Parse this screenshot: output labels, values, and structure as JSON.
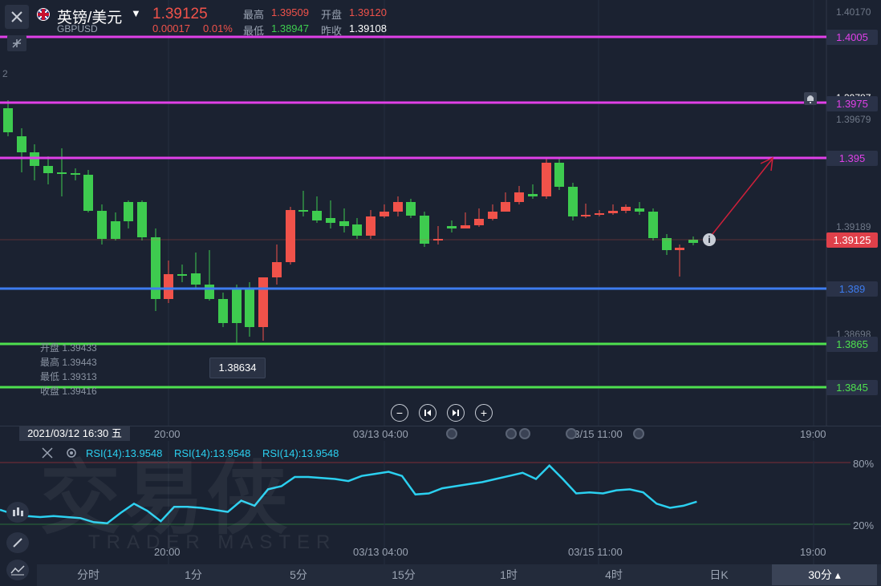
{
  "header": {
    "symbol_name": "英镑/美元",
    "symbol_code": "GBPUSD",
    "price": "1.39125",
    "change": "0.00017",
    "change_pct": "0.01%",
    "high_label": "最高",
    "high_value": "1.39509",
    "open_label": "开盘",
    "open_value": "1.39120",
    "low_label": "最低",
    "low_value": "1.38947",
    "prev_close_label": "昨收",
    "prev_close_value": "1.39108"
  },
  "price_axis": {
    "ticks": [
      "1.40170",
      "1.39679",
      "1.39189",
      "1.38698"
    ],
    "alert_price": "1.39787",
    "current_price": "1.39125"
  },
  "levels": [
    {
      "price": "1.4005",
      "color": "#e040e8"
    },
    {
      "price": "1.3975",
      "color": "#e040e8"
    },
    {
      "price": "1.395",
      "color": "#e040e8"
    },
    {
      "price": "1.389",
      "color": "#3d7cf0"
    },
    {
      "price": "1.3865",
      "color": "#4ee04e"
    },
    {
      "price": "1.3845",
      "color": "#4ee04e"
    }
  ],
  "ohlc_info": {
    "open": "开盘 1.39433",
    "high": "最高 1.39443",
    "low": "最低 1.39313",
    "close": "收盘 1.39416"
  },
  "low_marker": "1.38634",
  "left_edge_label": "2",
  "crosshair_time": "2021/03/12 16:30 五",
  "time_axis": [
    "20:00",
    "03/13 04:00",
    "03/15 11:00",
    "19:00"
  ],
  "rsi": {
    "labels": [
      "RSI(14):13.9548",
      "RSI(14):13.9548",
      "RSI(14):13.9548"
    ],
    "level_high": "80%",
    "level_low": "20%",
    "values": [
      34,
      30,
      28,
      27,
      28,
      27,
      26,
      22,
      21,
      31,
      40,
      33,
      23,
      37,
      37,
      36,
      34,
      32,
      43,
      38,
      54,
      57,
      66,
      66,
      65,
      64,
      62,
      67,
      69,
      71,
      67,
      49,
      50,
      55,
      57,
      59,
      61,
      64,
      67,
      70,
      64,
      77,
      64,
      50,
      51,
      50,
      53,
      54,
      51,
      40,
      36,
      38,
      42
    ]
  },
  "watermark": {
    "brand": "交易侠",
    "sub": "TRADER MASTER"
  },
  "timeframes": {
    "items": [
      "分时",
      "1分",
      "5分",
      "15分",
      "1时",
      "4时",
      "日K"
    ],
    "active": "30分"
  },
  "chart_data": {
    "type": "candlestick",
    "symbol": "GBPUSD",
    "candles_count": 53,
    "y_range": [
      1.3835,
      1.4019
    ],
    "colors": {
      "up": "#f0524a",
      "down": "#3ecb4f"
    }
  }
}
